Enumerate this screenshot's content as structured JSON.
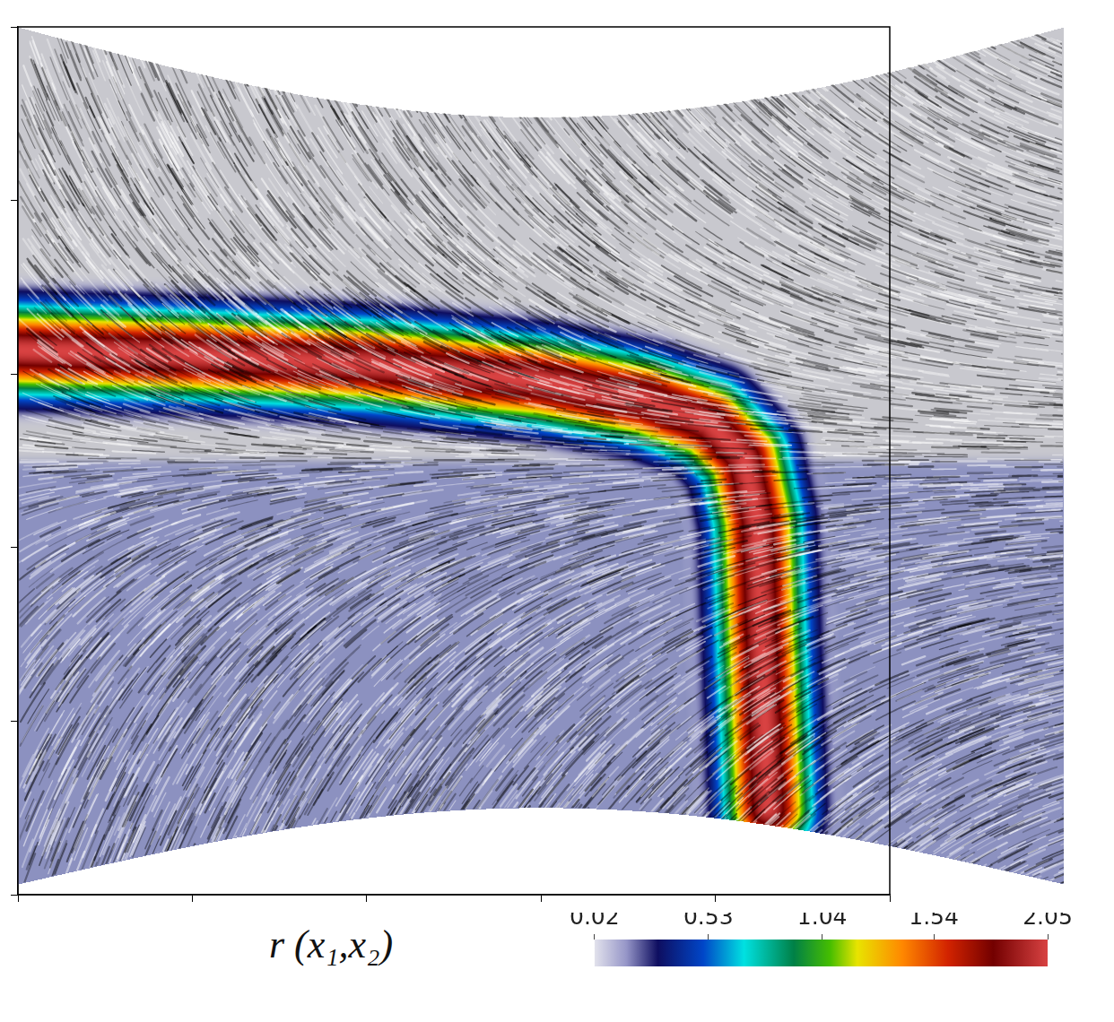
{
  "chart_data": {
    "type": "field",
    "xlim": [
      0,
      5
    ],
    "ylim": [
      0,
      5
    ],
    "xticks": [
      0,
      1,
      2,
      3,
      4,
      5
    ],
    "yticks": [
      0,
      1,
      2,
      3,
      4,
      5
    ],
    "tick_labels": false,
    "grid": false,
    "ridge": {
      "x": [
        0,
        1,
        2,
        3,
        3.6,
        3.96,
        4.16,
        4.24,
        4.26,
        4.28,
        4.3
      ],
      "y": [
        3.14,
        3.11,
        3.06,
        2.96,
        2.85,
        2.72,
        2.52,
        2.16,
        1.54,
        1.02,
        0.5
      ],
      "value": 2.05
    },
    "colorbar": {
      "label": "r (x₁,x₂)",
      "range": [
        0.02,
        2.05
      ],
      "ticks": [
        0.02,
        0.53,
        1.04,
        1.54,
        2.05
      ]
    }
  }
}
